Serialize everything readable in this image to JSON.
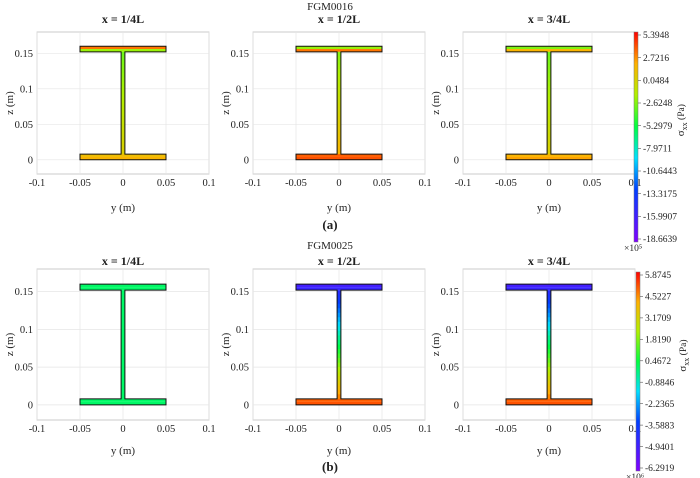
{
  "chart_data": [
    {
      "figure_title": "FGM0016",
      "panel_label": "(a)",
      "type": "heatmap",
      "xlabel": "y (m)",
      "ylabel": "z (m)",
      "xlim": [
        -0.1,
        0.1
      ],
      "ylim": [
        -0.02,
        0.18
      ],
      "xticks": [
        "-0.1",
        "-0.05",
        "0",
        "0.05",
        "0.1"
      ],
      "yticks": [
        "0",
        "0.05",
        "0.1",
        "0.15"
      ],
      "colorbar": {
        "label": "σ_xx (Pa)",
        "label_main": "σ",
        "label_sub": "xx",
        "label_unit": "(Pa)",
        "multiplier": "×10⁵",
        "ticks": [
          "5.3948",
          "2.7216",
          "0.0484",
          "-2.6248",
          "-5.2979",
          "-7.9711",
          "-10.6443",
          "-13.3175",
          "-15.9907",
          "-18.6639"
        ]
      },
      "panels": [
        {
          "title": "x = 1/4L",
          "top_flange": [
            0.9,
            0.68
          ],
          "web_top": 0.64,
          "web_bottom": 0.78,
          "bottom_flange": [
            0.82,
            0.84
          ]
        },
        {
          "title": "x = 1/2L",
          "top_flange": [
            0.68,
            0.9
          ],
          "web_top": 0.66,
          "web_bottom": 0.84,
          "bottom_flange": [
            0.92,
            0.93
          ]
        },
        {
          "title": "x = 3/4L",
          "top_flange": [
            0.66,
            0.84
          ],
          "web_top": 0.64,
          "web_bottom": 0.78,
          "bottom_flange": [
            0.84,
            0.86
          ]
        }
      ]
    },
    {
      "figure_title": "FGM0025",
      "panel_label": "(b)",
      "type": "heatmap",
      "xlabel": "y (m)",
      "ylabel": "z (m)",
      "xlim": [
        -0.1,
        0.1
      ],
      "ylim": [
        -0.02,
        0.18
      ],
      "xticks": [
        "-0.1",
        "-0.05",
        "0",
        "0.05",
        "0.1"
      ],
      "yticks": [
        "0",
        "0.05",
        "0.1",
        "0.15"
      ],
      "colorbar": {
        "label": "σ_xx (Pa)",
        "label_main": "σ",
        "label_sub": "xx",
        "label_unit": "(Pa)",
        "multiplier": "×10⁶",
        "ticks": [
          "5.8745",
          "4.5227",
          "3.1709",
          "1.8190",
          "0.4672",
          "-0.8846",
          "-2.2365",
          "-3.5883",
          "-4.9401",
          "-6.2919"
        ]
      },
      "panels": [
        {
          "title": "x = 1/4L",
          "top_flange": [
            0.52,
            0.52
          ],
          "web_top": 0.52,
          "web_bottom": 0.52,
          "bottom_flange": [
            0.52,
            0.52
          ]
        },
        {
          "title": "x = 1/2L",
          "top_flange": [
            0.12,
            0.14
          ],
          "web_top": 0.16,
          "web_bottom": 0.9,
          "bottom_flange": [
            0.92,
            0.93
          ]
        },
        {
          "title": "x = 3/4L",
          "top_flange": [
            0.12,
            0.14
          ],
          "web_top": 0.16,
          "web_bottom": 0.9,
          "bottom_flange": [
            0.92,
            0.93
          ]
        }
      ]
    }
  ]
}
